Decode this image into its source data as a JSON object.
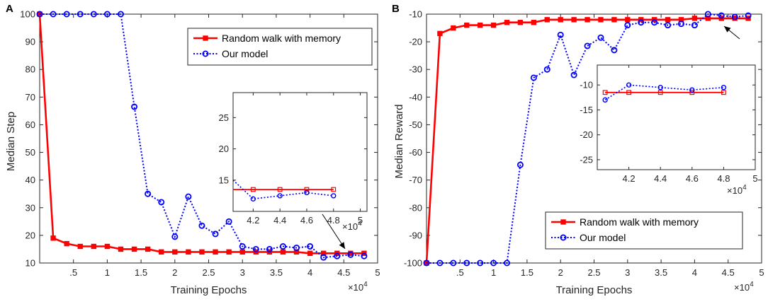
{
  "chart_data": [
    {
      "panel": "A",
      "type": "line",
      "xlabel": "Training Epochs",
      "ylabel": "Median Step",
      "x_exponent_label": "×10",
      "x_exponent": "4",
      "xlim": [
        0,
        5
      ],
      "ylim": [
        10,
        100
      ],
      "xticks": [
        0.5,
        1,
        1.5,
        2,
        2.5,
        3,
        3.5,
        4,
        4.5,
        5
      ],
      "yticks": [
        10,
        20,
        30,
        40,
        50,
        60,
        70,
        80,
        90,
        100
      ],
      "legend_position": "top-right",
      "series": [
        {
          "name": "Random walk with memory",
          "color": "#ff0000",
          "marker": "square",
          "style": "solid",
          "x": [
            0,
            0.2,
            0.4,
            0.6,
            0.8,
            1.0,
            1.2,
            1.4,
            1.6,
            1.8,
            2.0,
            2.2,
            2.4,
            2.6,
            2.8,
            3.0,
            3.2,
            3.4,
            3.6,
            3.8,
            4.0,
            4.2,
            4.4,
            4.6,
            4.8
          ],
          "y": [
            100,
            19,
            17,
            16,
            16,
            16,
            15,
            15,
            15,
            14,
            14,
            14,
            14,
            14,
            14,
            14,
            14,
            14,
            14,
            14,
            13.5,
            13.5,
            13.5,
            13.5,
            13.5
          ]
        },
        {
          "name": "Our model",
          "color": "#0000ff",
          "marker": "circle",
          "style": "dotted",
          "x": [
            0,
            0.2,
            0.4,
            0.6,
            0.8,
            1.0,
            1.2,
            1.4,
            1.6,
            1.8,
            2.0,
            2.2,
            2.4,
            2.6,
            2.8,
            3.0,
            3.2,
            3.4,
            3.6,
            3.8,
            4.0,
            4.2,
            4.4,
            4.6,
            4.8
          ],
          "y": [
            100,
            100,
            100,
            100,
            100,
            100,
            100,
            66.5,
            35,
            32,
            19.5,
            34,
            23.5,
            20.5,
            25,
            16,
            15,
            15,
            16,
            15.5,
            16,
            12,
            12.5,
            13,
            12.5
          ]
        }
      ],
      "inset": {
        "xlim": [
          4.05,
          5.05
        ],
        "ylim": [
          10,
          29
        ],
        "xticks": [
          4.2,
          4.4,
          4.6,
          4.8,
          5
        ],
        "yticks": [
          15,
          20,
          25
        ],
        "x_exponent": "4",
        "xrange_shown": [
          4.05,
          4.8
        ]
      }
    },
    {
      "panel": "B",
      "type": "line",
      "xlabel": "Training Epochs",
      "ylabel": "Median Reward",
      "x_exponent_label": "×10",
      "x_exponent": "4",
      "xlim": [
        0,
        5
      ],
      "ylim": [
        -100,
        -10
      ],
      "xticks": [
        0.5,
        1,
        1.5,
        2,
        2.5,
        3,
        3.5,
        4,
        4.5,
        5
      ],
      "yticks": [
        -100,
        -90,
        -80,
        -70,
        -60,
        -50,
        -40,
        -30,
        -20,
        -10
      ],
      "legend_position": "bottom-right",
      "series": [
        {
          "name": "Random walk with memory",
          "color": "#ff0000",
          "marker": "square",
          "style": "solid",
          "x": [
            0,
            0.2,
            0.4,
            0.6,
            0.8,
            1.0,
            1.2,
            1.4,
            1.6,
            1.8,
            2.0,
            2.2,
            2.4,
            2.6,
            2.8,
            3.0,
            3.2,
            3.4,
            3.6,
            3.8,
            4.0,
            4.2,
            4.4,
            4.6,
            4.8
          ],
          "y": [
            -100,
            -17,
            -15,
            -14,
            -14,
            -14,
            -13,
            -13,
            -13,
            -12,
            -12,
            -12,
            -12,
            -12,
            -12,
            -12,
            -12,
            -12,
            -12,
            -12,
            -11.5,
            -11.5,
            -11.5,
            -11.5,
            -11.5
          ]
        },
        {
          "name": "Our model",
          "color": "#0000ff",
          "marker": "circle",
          "style": "dotted",
          "x": [
            0,
            0.2,
            0.4,
            0.6,
            0.8,
            1.0,
            1.2,
            1.4,
            1.6,
            1.8,
            2.0,
            2.2,
            2.4,
            2.6,
            2.8,
            3.0,
            3.2,
            3.4,
            3.6,
            3.8,
            4.0,
            4.2,
            4.4,
            4.6,
            4.8
          ],
          "y": [
            -100,
            -100,
            -100,
            -100,
            -100,
            -100,
            -100,
            -64.5,
            -33,
            -30,
            -17.5,
            -32,
            -21.5,
            -18.5,
            -23,
            -14,
            -13,
            -13,
            -14,
            -13.5,
            -14,
            -10,
            -10.5,
            -11,
            -10.5
          ]
        }
      ],
      "inset": {
        "xlim": [
          4.0,
          5.0
        ],
        "ylim": [
          -27,
          -6
        ],
        "xticks": [
          4.2,
          4.4,
          4.6,
          4.8,
          5
        ],
        "yticks": [
          -25,
          -20,
          -15,
          -10
        ],
        "x_exponent": "4",
        "xrange_shown": [
          4.05,
          4.8
        ]
      }
    }
  ]
}
